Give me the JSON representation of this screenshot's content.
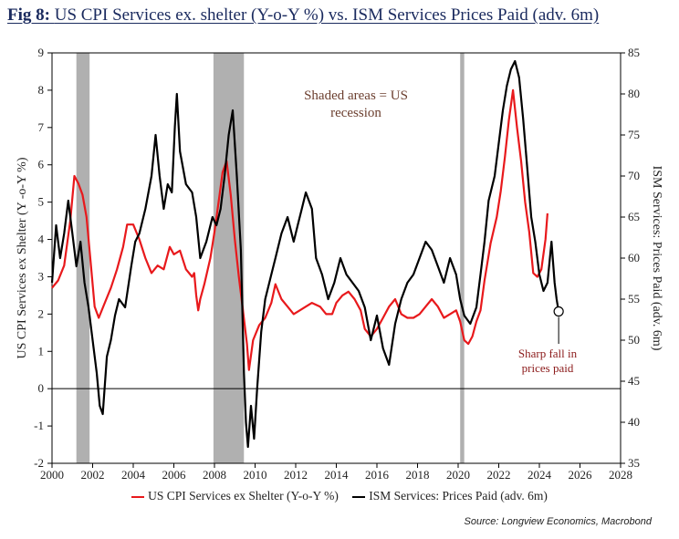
{
  "title": {
    "prefix": "Fig 8:",
    "text": "US CPI Services ex. shelter (Y-o-Y %) vs. ISM Services Prices Paid (adv. 6m)"
  },
  "source": "Source: Longview Economics, Macrobond",
  "annotations": {
    "recession_note_line1": "Shaded areas = US",
    "recession_note_line2": "recession",
    "callout_line1": "Sharp fall in",
    "callout_line2": "prices paid"
  },
  "colors": {
    "cpi": "#e8191c",
    "ism": "#000000",
    "recession": "#b0b0b0",
    "title": "#1a2a5e"
  },
  "chart_data": {
    "type": "line",
    "title": "US CPI Services ex. shelter (Y-o-Y %) vs. ISM Services Prices Paid (adv. 6m)",
    "xlim": [
      2000,
      2028
    ],
    "x_ticks": [
      "2000",
      "2002",
      "2004",
      "2006",
      "2008",
      "2010",
      "2012",
      "2014",
      "2016",
      "2018",
      "2020",
      "2022",
      "2024",
      "2026",
      "2028"
    ],
    "ylim_left": [
      -2,
      9
    ],
    "ylim_right": [
      35,
      85
    ],
    "y_ticks_left": [
      "-2",
      "-1",
      "0",
      "1",
      "2",
      "3",
      "4",
      "5",
      "6",
      "7",
      "8",
      "9"
    ],
    "y_ticks_right": [
      "35",
      "40",
      "45",
      "50",
      "55",
      "60",
      "65",
      "70",
      "75",
      "80",
      "85"
    ],
    "ylabel_left": "US CPI Services ex Shelter (Y  -o-Y %)",
    "ylabel_right": "ISM Services: Prices Paid (adv. 6m)",
    "recessions": [
      [
        2001.2,
        2001.85
      ],
      [
        2007.95,
        2009.45
      ],
      [
        2020.1,
        2020.3
      ]
    ],
    "series": [
      {
        "name": "US CPI Services ex Shelter (Y-o-Y %)",
        "axis": "left",
        "color": "#e8191c",
        "points": [
          [
            2000.0,
            2.7
          ],
          [
            2000.3,
            2.9
          ],
          [
            2000.6,
            3.3
          ],
          [
            2000.9,
            4.5
          ],
          [
            2001.1,
            5.7
          ],
          [
            2001.3,
            5.5
          ],
          [
            2001.5,
            5.2
          ],
          [
            2001.7,
            4.6
          ],
          [
            2001.9,
            3.4
          ],
          [
            2002.1,
            2.2
          ],
          [
            2002.3,
            1.9
          ],
          [
            2002.6,
            2.3
          ],
          [
            2002.9,
            2.7
          ],
          [
            2003.2,
            3.2
          ],
          [
            2003.5,
            3.8
          ],
          [
            2003.7,
            4.4
          ],
          [
            2004.0,
            4.4
          ],
          [
            2004.3,
            4.0
          ],
          [
            2004.6,
            3.5
          ],
          [
            2004.9,
            3.1
          ],
          [
            2005.2,
            3.3
          ],
          [
            2005.5,
            3.2
          ],
          [
            2005.8,
            3.8
          ],
          [
            2006.0,
            3.6
          ],
          [
            2006.3,
            3.7
          ],
          [
            2006.6,
            3.2
          ],
          [
            2006.9,
            3.0
          ],
          [
            2007.0,
            3.1
          ],
          [
            2007.1,
            2.5
          ],
          [
            2007.2,
            2.1
          ],
          [
            2007.3,
            2.4
          ],
          [
            2007.5,
            2.8
          ],
          [
            2007.8,
            3.5
          ],
          [
            2008.0,
            4.2
          ],
          [
            2008.2,
            5.0
          ],
          [
            2008.4,
            5.8
          ],
          [
            2008.6,
            6.1
          ],
          [
            2008.8,
            5.2
          ],
          [
            2009.0,
            4.0
          ],
          [
            2009.2,
            3.0
          ],
          [
            2009.4,
            2.1
          ],
          [
            2009.6,
            1.2
          ],
          [
            2009.7,
            0.5
          ],
          [
            2009.9,
            1.3
          ],
          [
            2010.2,
            1.7
          ],
          [
            2010.5,
            1.9
          ],
          [
            2010.8,
            2.3
          ],
          [
            2011.0,
            2.8
          ],
          [
            2011.3,
            2.4
          ],
          [
            2011.6,
            2.2
          ],
          [
            2011.9,
            2.0
          ],
          [
            2012.2,
            2.1
          ],
          [
            2012.5,
            2.2
          ],
          [
            2012.8,
            2.3
          ],
          [
            2013.2,
            2.2
          ],
          [
            2013.5,
            2.0
          ],
          [
            2013.8,
            2.0
          ],
          [
            2014.0,
            2.3
          ],
          [
            2014.3,
            2.5
          ],
          [
            2014.6,
            2.6
          ],
          [
            2014.9,
            2.4
          ],
          [
            2015.2,
            2.1
          ],
          [
            2015.4,
            1.6
          ],
          [
            2015.7,
            1.4
          ],
          [
            2016.0,
            1.6
          ],
          [
            2016.3,
            1.9
          ],
          [
            2016.6,
            2.2
          ],
          [
            2016.9,
            2.4
          ],
          [
            2017.2,
            2.0
          ],
          [
            2017.5,
            1.9
          ],
          [
            2017.8,
            1.9
          ],
          [
            2018.1,
            2.0
          ],
          [
            2018.4,
            2.2
          ],
          [
            2018.7,
            2.4
          ],
          [
            2019.0,
            2.2
          ],
          [
            2019.3,
            1.9
          ],
          [
            2019.6,
            2.0
          ],
          [
            2019.9,
            2.1
          ],
          [
            2020.1,
            1.8
          ],
          [
            2020.3,
            1.3
          ],
          [
            2020.5,
            1.2
          ],
          [
            2020.7,
            1.4
          ],
          [
            2020.9,
            1.8
          ],
          [
            2021.1,
            2.1
          ],
          [
            2021.3,
            2.9
          ],
          [
            2021.6,
            3.9
          ],
          [
            2021.9,
            4.6
          ],
          [
            2022.1,
            5.3
          ],
          [
            2022.3,
            6.2
          ],
          [
            2022.5,
            7.2
          ],
          [
            2022.7,
            8.0
          ],
          [
            2022.9,
            7.0
          ],
          [
            2023.1,
            6.1
          ],
          [
            2023.3,
            5.0
          ],
          [
            2023.5,
            4.2
          ],
          [
            2023.7,
            3.1
          ],
          [
            2023.9,
            3.0
          ],
          [
            2024.1,
            3.2
          ],
          [
            2024.3,
            4.0
          ],
          [
            2024.4,
            4.7
          ]
        ]
      },
      {
        "name": "ISM Services: Prices Paid (adv. 6m)",
        "axis": "right",
        "color": "#000000",
        "points": [
          [
            2000.0,
            57
          ],
          [
            2000.2,
            64
          ],
          [
            2000.4,
            60
          ],
          [
            2000.6,
            63
          ],
          [
            2000.8,
            67
          ],
          [
            2001.0,
            63
          ],
          [
            2001.2,
            59
          ],
          [
            2001.4,
            62
          ],
          [
            2001.6,
            57
          ],
          [
            2001.8,
            54
          ],
          [
            2002.0,
            50
          ],
          [
            2002.2,
            46
          ],
          [
            2002.35,
            42
          ],
          [
            2002.5,
            41
          ],
          [
            2002.7,
            48
          ],
          [
            2002.9,
            50
          ],
          [
            2003.1,
            53
          ],
          [
            2003.3,
            55
          ],
          [
            2003.6,
            54
          ],
          [
            2003.9,
            59
          ],
          [
            2004.1,
            62
          ],
          [
            2004.3,
            63
          ],
          [
            2004.6,
            66
          ],
          [
            2004.9,
            70
          ],
          [
            2005.1,
            75
          ],
          [
            2005.3,
            70
          ],
          [
            2005.5,
            66
          ],
          [
            2005.7,
            69
          ],
          [
            2005.9,
            68
          ],
          [
            2006.05,
            76
          ],
          [
            2006.15,
            80
          ],
          [
            2006.3,
            73
          ],
          [
            2006.6,
            69
          ],
          [
            2006.9,
            68
          ],
          [
            2007.1,
            65
          ],
          [
            2007.3,
            60
          ],
          [
            2007.6,
            62
          ],
          [
            2007.9,
            65
          ],
          [
            2008.1,
            64
          ],
          [
            2008.3,
            66
          ],
          [
            2008.5,
            70
          ],
          [
            2008.7,
            75
          ],
          [
            2008.9,
            78
          ],
          [
            2009.1,
            70
          ],
          [
            2009.3,
            61
          ],
          [
            2009.45,
            46
          ],
          [
            2009.55,
            40
          ],
          [
            2009.65,
            37
          ],
          [
            2009.8,
            42
          ],
          [
            2009.95,
            38
          ],
          [
            2010.1,
            44
          ],
          [
            2010.3,
            51
          ],
          [
            2010.5,
            55
          ],
          [
            2010.8,
            58
          ],
          [
            2011.0,
            60
          ],
          [
            2011.3,
            63
          ],
          [
            2011.6,
            65
          ],
          [
            2011.9,
            62
          ],
          [
            2012.1,
            64
          ],
          [
            2012.3,
            66
          ],
          [
            2012.5,
            68
          ],
          [
            2012.8,
            66
          ],
          [
            2013.0,
            60
          ],
          [
            2013.3,
            58
          ],
          [
            2013.6,
            55
          ],
          [
            2013.9,
            57
          ],
          [
            2014.2,
            60
          ],
          [
            2014.5,
            58
          ],
          [
            2014.8,
            57
          ],
          [
            2015.1,
            56
          ],
          [
            2015.4,
            54
          ],
          [
            2015.7,
            50
          ],
          [
            2016.0,
            53
          ],
          [
            2016.3,
            49
          ],
          [
            2016.6,
            47
          ],
          [
            2016.9,
            52
          ],
          [
            2017.2,
            55
          ],
          [
            2017.5,
            57
          ],
          [
            2017.8,
            58
          ],
          [
            2018.1,
            60
          ],
          [
            2018.4,
            62
          ],
          [
            2018.7,
            61
          ],
          [
            2019.0,
            59
          ],
          [
            2019.3,
            57
          ],
          [
            2019.6,
            60
          ],
          [
            2019.9,
            58
          ],
          [
            2020.1,
            55
          ],
          [
            2020.3,
            53
          ],
          [
            2020.6,
            52
          ],
          [
            2020.9,
            54
          ],
          [
            2021.1,
            58
          ],
          [
            2021.3,
            62
          ],
          [
            2021.5,
            67
          ],
          [
            2021.8,
            70
          ],
          [
            2022.0,
            74
          ],
          [
            2022.2,
            78
          ],
          [
            2022.4,
            81
          ],
          [
            2022.6,
            83
          ],
          [
            2022.8,
            84
          ],
          [
            2023.0,
            82
          ],
          [
            2023.2,
            77
          ],
          [
            2023.4,
            71
          ],
          [
            2023.6,
            65
          ],
          [
            2023.8,
            62
          ],
          [
            2024.0,
            58
          ],
          [
            2024.2,
            56
          ],
          [
            2024.4,
            57
          ],
          [
            2024.6,
            62
          ],
          [
            2024.75,
            57
          ],
          [
            2024.85,
            55
          ],
          [
            2024.95,
            53.5
          ]
        ]
      }
    ],
    "legend": [
      "US CPI Services ex Shelter (Y-o-Y %)",
      "ISM Services: Prices Paid (adv. 6m)"
    ],
    "legend_position": "bottom"
  }
}
